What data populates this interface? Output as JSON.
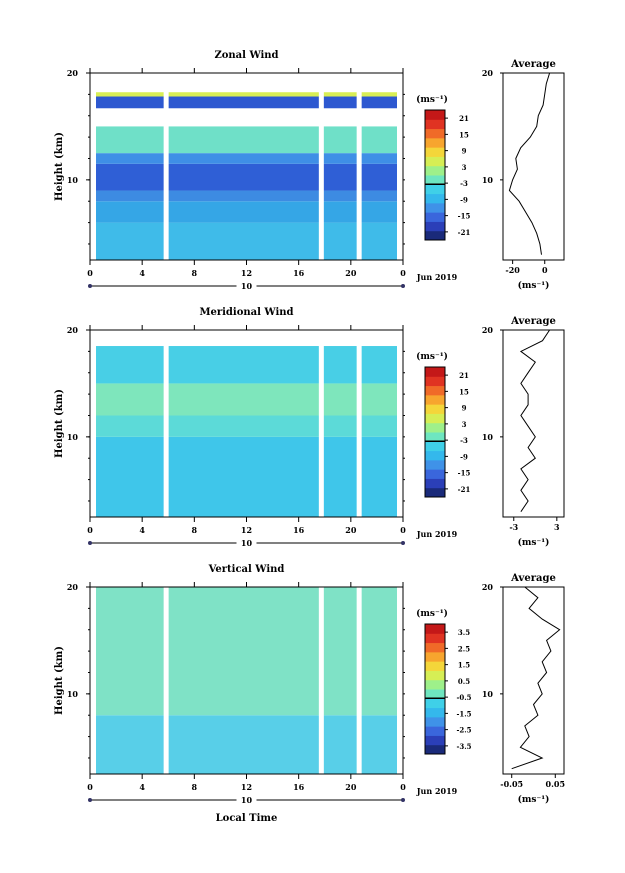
{
  "chart_data": [
    {
      "type": "heatmap",
      "title": "Zonal Wind",
      "ylabel": "Height (km)",
      "xlim": [
        0,
        24
      ],
      "ylim": [
        2.5,
        20
      ],
      "x_ticks": [
        "0",
        "4",
        "8",
        "12",
        "16",
        "20",
        "0"
      ],
      "y_ticks": [
        "20",
        "10"
      ],
      "date_label": "Jun 2019",
      "day_label": "10",
      "data_gaps_hours": [
        5.8,
        17.7,
        20.6
      ],
      "colorbar": {
        "unit": "(ms⁻¹)",
        "ticks": [
          "21",
          "15",
          "9",
          "3",
          "-3",
          "-9",
          "-15",
          "-21"
        ],
        "range": [
          -24,
          24
        ],
        "colors": [
          "#1a2a7a",
          "#2b3fb8",
          "#3a66dc",
          "#3f92e8",
          "#34b8ec",
          "#3fd0e8",
          "#6ee6c0",
          "#9ef08a",
          "#d6ee55",
          "#f4d63a",
          "#f7a52e",
          "#f06a28",
          "#e03322",
          "#c41818"
        ]
      },
      "profile": {
        "title": "Average",
        "x_ticks": [
          "-20",
          "0"
        ],
        "xlim": [
          -26,
          12
        ],
        "unit": "(ms⁻¹)",
        "series": [
          {
            "x": [
              -2,
              -3,
              -5,
              -8,
              -12,
              -16,
              -22,
              -20,
              -17,
              -18,
              -15,
              -9,
              -5,
              -4,
              -1,
              0,
              1,
              3
            ],
            "y": [
              3,
              4,
              5,
              6,
              7,
              8,
              9,
              10,
              11,
              12,
              13,
              14,
              15,
              16,
              17,
              18,
              19,
              20
            ]
          }
        ]
      },
      "bands": [
        {
          "h": [
            2.5,
            6
          ],
          "c": "#3fbbe9"
        },
        {
          "h": [
            6,
            8
          ],
          "c": "#35a6e6"
        },
        {
          "h": [
            8,
            9
          ],
          "c": "#3d8be2"
        },
        {
          "h": [
            9,
            11.5
          ],
          "c": "#2f5fd6"
        },
        {
          "h": [
            11.5,
            12.5
          ],
          "c": "#3f8fe6"
        },
        {
          "h": [
            12.5,
            15
          ],
          "c": "#6fe0c8"
        },
        {
          "h": [
            16.7,
            17.8
          ],
          "c": "#2d58d0"
        },
        {
          "h": [
            17.8,
            18.2
          ],
          "c": "#d8ee55"
        }
      ]
    },
    {
      "type": "heatmap",
      "title": "Meridional Wind",
      "ylabel": "Height (km)",
      "xlim": [
        0,
        24
      ],
      "ylim": [
        2.5,
        20
      ],
      "x_ticks": [
        "0",
        "4",
        "8",
        "12",
        "16",
        "20",
        "0"
      ],
      "y_ticks": [
        "20",
        "10"
      ],
      "date_label": "Jun 2019",
      "day_label": "10",
      "data_gaps_hours": [
        5.8,
        17.7,
        20.6
      ],
      "colorbar": {
        "unit": "(ms⁻¹)",
        "ticks": [
          "21",
          "15",
          "9",
          "3",
          "-3",
          "-9",
          "-15",
          "-21"
        ],
        "range": [
          -24,
          24
        ],
        "colors": [
          "#1a2a7a",
          "#2b3fb8",
          "#3a66dc",
          "#3f92e8",
          "#34b8ec",
          "#3fd0e8",
          "#6ee6c0",
          "#9ef08a",
          "#d6ee55",
          "#f4d63a",
          "#f7a52e",
          "#f06a28",
          "#e03322",
          "#c41818"
        ]
      },
      "profile": {
        "title": "Average",
        "x_ticks": [
          "-3",
          "3"
        ],
        "xlim": [
          -4.5,
          4
        ],
        "unit": "(ms⁻¹)",
        "series": [
          {
            "x": [
              -2,
              -1,
              -2,
              -1,
              -2,
              0,
              -1,
              0,
              -1,
              -2,
              -1,
              -1,
              -2,
              -1,
              0,
              -2,
              1,
              2
            ],
            "y": [
              3,
              4,
              5,
              6,
              7,
              8,
              9,
              10,
              11,
              12,
              13,
              14,
              15,
              16,
              17,
              18,
              19,
              20
            ]
          }
        ]
      },
      "bands": [
        {
          "h": [
            2.5,
            10
          ],
          "c": "#3fc6ea"
        },
        {
          "h": [
            10,
            12
          ],
          "c": "#5cdad8"
        },
        {
          "h": [
            12,
            15
          ],
          "c": "#7ee6bc"
        },
        {
          "h": [
            15,
            18.5
          ],
          "c": "#48cfe6"
        }
      ]
    },
    {
      "type": "heatmap",
      "title": "Vertical Wind",
      "ylabel": "Height (km)",
      "xlabel": "Local Time",
      "xlim": [
        0,
        24
      ],
      "ylim": [
        2.5,
        20
      ],
      "x_ticks": [
        "0",
        "4",
        "8",
        "12",
        "16",
        "20",
        "0"
      ],
      "y_ticks": [
        "20",
        "10"
      ],
      "date_label": "Jun 2019",
      "day_label": "10",
      "data_gaps_hours": [
        5.8,
        17.7,
        20.6
      ],
      "colorbar": {
        "unit": "(ms⁻¹)",
        "ticks": [
          "3.5",
          "2.5",
          "1.5",
          "0.5",
          "-0.5",
          "-1.5",
          "-2.5",
          "-3.5"
        ],
        "range": [
          -4,
          4
        ],
        "colors": [
          "#1a2a7a",
          "#2b3fb8",
          "#3a66dc",
          "#3f92e8",
          "#34b8ec",
          "#3fd0e8",
          "#6ee6c0",
          "#9ef08a",
          "#d6ee55",
          "#f4d63a",
          "#f7a52e",
          "#f06a28",
          "#e03322",
          "#c41818"
        ]
      },
      "profile": {
        "title": "Average",
        "x_ticks": [
          "-0.05",
          "0.05"
        ],
        "xlim": [
          -0.07,
          0.07
        ],
        "unit": "(ms⁻¹)",
        "series": [
          {
            "x": [
              -0.05,
              0.02,
              -0.03,
              -0.01,
              -0.02,
              0.01,
              0,
              0.02,
              0.01,
              0.03,
              0.02,
              0.04,
              0.03,
              0.06,
              0.02,
              -0.01,
              0.01,
              -0.02
            ],
            "y": [
              3,
              4,
              5,
              6,
              7,
              8,
              9,
              10,
              11,
              12,
              13,
              14,
              15,
              16,
              17,
              18,
              19,
              20
            ]
          }
        ]
      },
      "bands": [
        {
          "h": [
            2.5,
            8
          ],
          "c": "#58cfe8"
        },
        {
          "h": [
            8,
            20
          ],
          "c": "#7fe2c6"
        }
      ]
    }
  ]
}
